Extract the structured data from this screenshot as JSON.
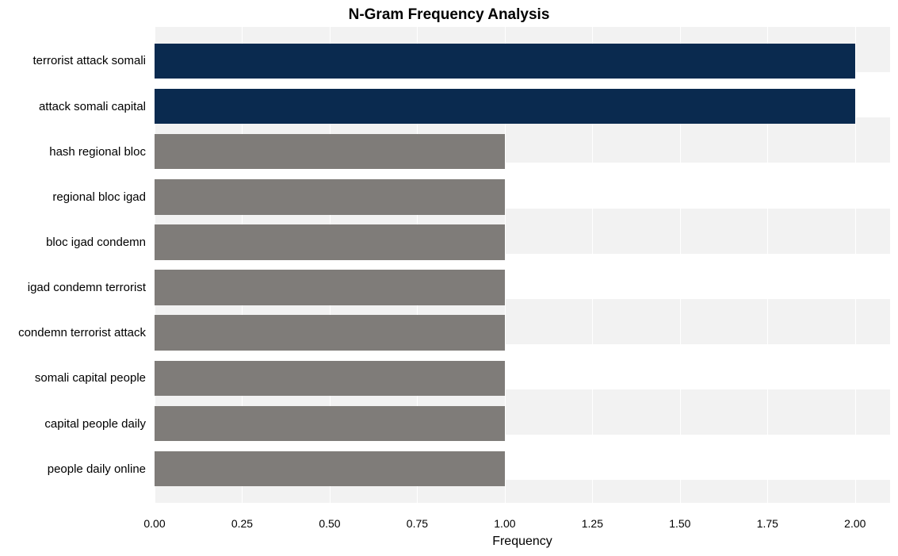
{
  "chart": {
    "type": "bar-horizontal",
    "title": "N-Gram Frequency Analysis",
    "title_fontsize": 19,
    "title_weight": "bold",
    "xlabel": "Frequency",
    "xlabel_fontsize": 16,
    "xlim": [
      0,
      2.1
    ],
    "xtick_step": 0.25,
    "xticks": [
      {
        "v": 0.0,
        "label": "0.00"
      },
      {
        "v": 0.25,
        "label": "0.25"
      },
      {
        "v": 0.5,
        "label": "0.50"
      },
      {
        "v": 0.75,
        "label": "0.75"
      },
      {
        "v": 1.0,
        "label": "1.00"
      },
      {
        "v": 1.25,
        "label": "1.25"
      },
      {
        "v": 1.5,
        "label": "1.50"
      },
      {
        "v": 1.75,
        "label": "1.75"
      },
      {
        "v": 2.0,
        "label": "2.00"
      }
    ],
    "categories": [
      {
        "label": "terrorist attack somali",
        "value": 2,
        "color": "#0a2a4f"
      },
      {
        "label": "attack somali capital",
        "value": 2,
        "color": "#0a2a4f"
      },
      {
        "label": "hash regional bloc",
        "value": 1,
        "color": "#7f7c79"
      },
      {
        "label": "regional bloc igad",
        "value": 1,
        "color": "#7f7c79"
      },
      {
        "label": "bloc igad condemn",
        "value": 1,
        "color": "#7f7c79"
      },
      {
        "label": "igad condemn terrorist",
        "value": 1,
        "color": "#7f7c79"
      },
      {
        "label": "condemn terrorist attack",
        "value": 1,
        "color": "#7f7c79"
      },
      {
        "label": "somali capital people",
        "value": 1,
        "color": "#7f7c79"
      },
      {
        "label": "capital people daily",
        "value": 1,
        "color": "#7f7c79"
      },
      {
        "label": "people daily online",
        "value": 1,
        "color": "#7f7c79"
      }
    ],
    "zebra_colors": [
      "#f2f2f2",
      "#ffffff"
    ],
    "grid_color": "#ffffff",
    "ytick_fontsize": 15,
    "xtick_fontsize": 14,
    "bar_height_ratio": 0.78,
    "plot_bg": "#ffffff"
  }
}
